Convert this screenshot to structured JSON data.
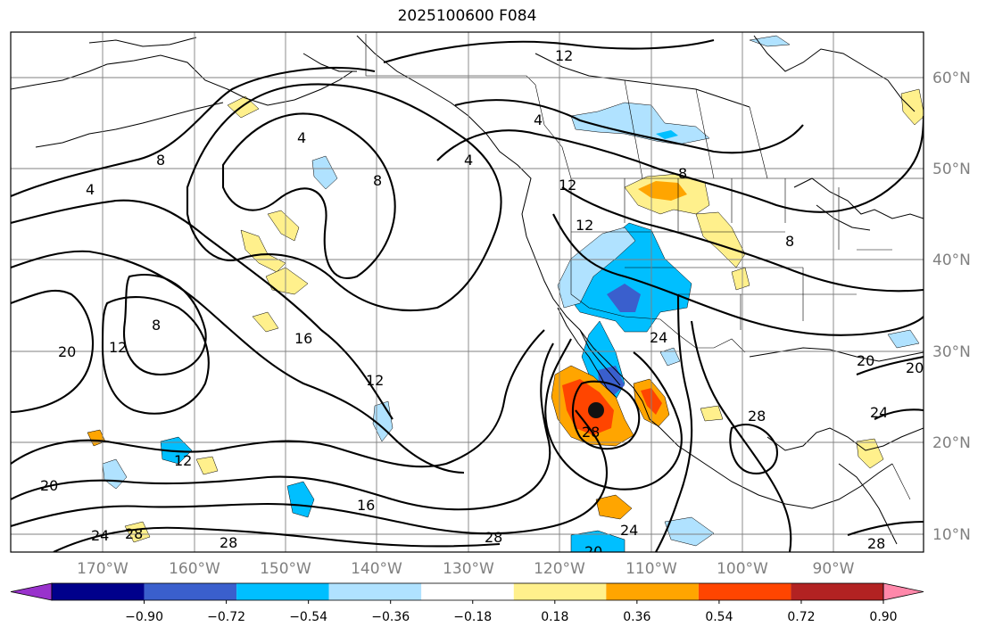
{
  "title": "2025100600 F084",
  "map": {
    "lat_labels": [
      "60°N",
      "50°N",
      "40°N",
      "30°N",
      "20°N",
      "10°N"
    ],
    "lon_labels": [
      "170°W",
      "160°W",
      "150°W",
      "140°W",
      "130°W",
      "120°W",
      "110°W",
      "100°W",
      "90°W"
    ],
    "grid": true
  },
  "colorbar": {
    "ticks": [
      "−0.90",
      "−0.72",
      "−0.54",
      "−0.36",
      "−0.18",
      "0.18",
      "0.36",
      "0.54",
      "0.72",
      "0.90"
    ],
    "colors": [
      "#9932cc",
      "#00008b",
      "#3a5fcd",
      "#00bfff",
      "#b0e2ff",
      "#ffffff",
      "#fff08c",
      "#ffa500",
      "#ff4500",
      "#b22222",
      "#ff88aa"
    ],
    "extend": "both"
  },
  "contour_labels": [
    {
      "text": "12",
      "id": "c12-top"
    },
    {
      "text": "4",
      "id": "c4-alaska"
    },
    {
      "text": "4",
      "id": "c4-gulf"
    },
    {
      "text": "4",
      "id": "c4-coast"
    },
    {
      "text": "4",
      "id": "c4-west"
    },
    {
      "text": "8",
      "id": "c8-nw"
    },
    {
      "text": "8",
      "id": "c8-center"
    },
    {
      "text": "8",
      "id": "c8-canada"
    },
    {
      "text": "8",
      "id": "c8-west"
    },
    {
      "text": "8",
      "id": "c8-east"
    },
    {
      "text": "12",
      "id": "c12-bc"
    },
    {
      "text": "12",
      "id": "c12-wa"
    },
    {
      "text": "12",
      "id": "c12-west"
    },
    {
      "text": "12",
      "id": "c12-mid"
    },
    {
      "text": "12",
      "id": "c12-sw"
    },
    {
      "text": "16",
      "id": "c16-mid"
    },
    {
      "text": "16",
      "id": "c16-south"
    },
    {
      "text": "20",
      "id": "c20-west"
    },
    {
      "text": "20",
      "id": "c20-sw"
    },
    {
      "text": "20",
      "id": "c20-gulf"
    },
    {
      "text": "20",
      "id": "c20-bottom"
    },
    {
      "text": "20",
      "id": "c20-east"
    },
    {
      "text": "24",
      "id": "c24-mex"
    },
    {
      "text": "24",
      "id": "c24-bottom"
    },
    {
      "text": "24",
      "id": "c24-sw"
    },
    {
      "text": "24",
      "id": "c24-gulf"
    },
    {
      "text": "28",
      "id": "c28-storm"
    },
    {
      "text": "28",
      "id": "c28-mex"
    },
    {
      "text": "28",
      "id": "c28-bottom"
    },
    {
      "text": "28",
      "id": "c28-sw"
    },
    {
      "text": "28",
      "id": "c28-sw2"
    },
    {
      "text": "28",
      "id": "c28-se"
    }
  ]
}
